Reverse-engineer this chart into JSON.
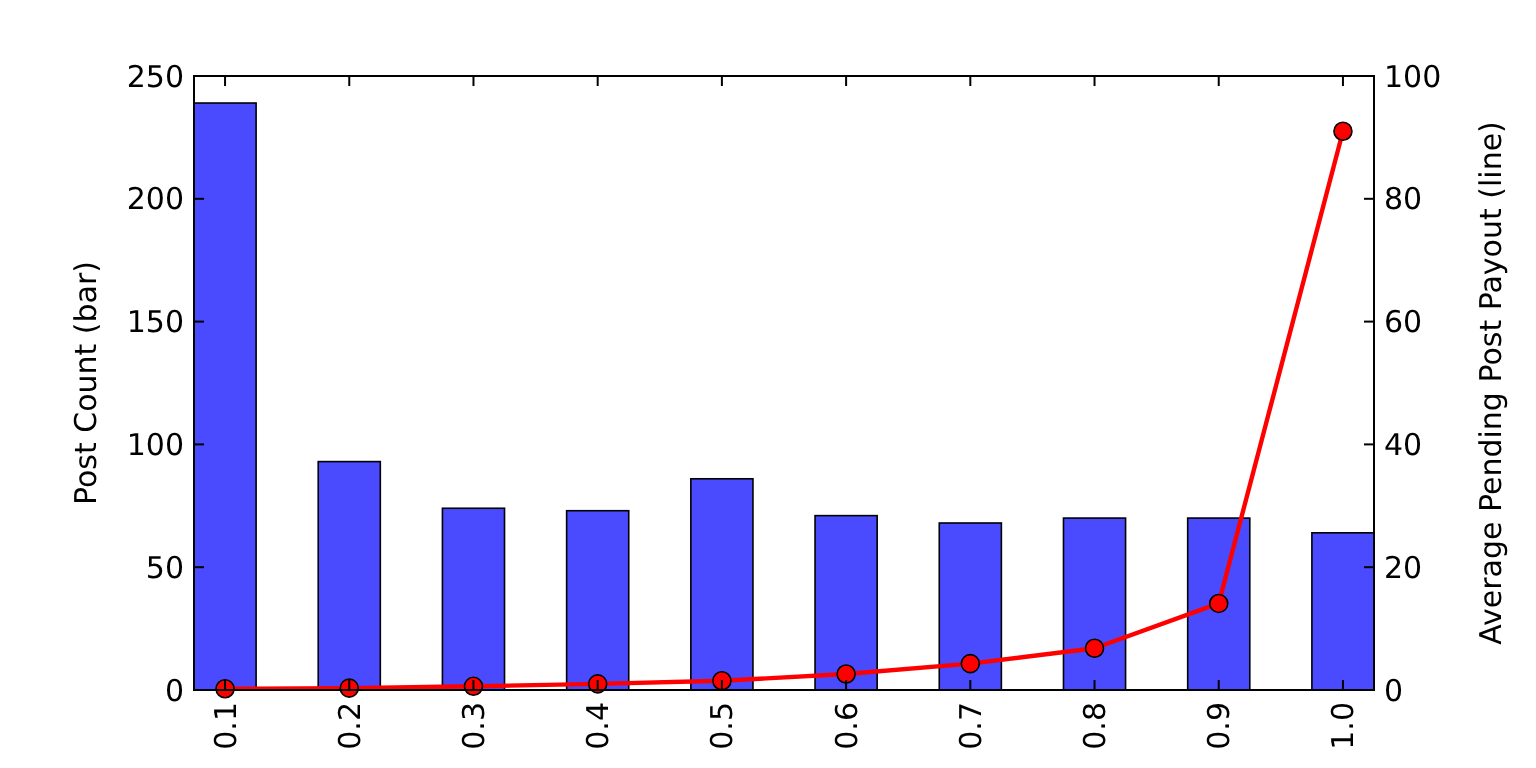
{
  "chart_data": {
    "type": "bar",
    "categories": [
      "0.1",
      "0.2",
      "0.3",
      "0.4",
      "0.5",
      "0.6",
      "0.7",
      "0.8",
      "0.9",
      "1.0"
    ],
    "ylabel": "Post Count (bar)",
    "y2label": "Average Pending Post Payout (line)",
    "ylim": [
      0,
      250
    ],
    "yticks": [
      0,
      50,
      100,
      150,
      200,
      250
    ],
    "y2lim": [
      0,
      100
    ],
    "y2ticks": [
      0,
      20,
      40,
      60,
      80,
      100
    ],
    "series": [
      {
        "color": "#4a4aff",
        "values": [
          239,
          93,
          74,
          73,
          86,
          71,
          68,
          70,
          70,
          64
        ]
      },
      {
        "type": "line",
        "axis": "y2",
        "color": "#ff0000",
        "marker": "circle",
        "values": [
          0.2,
          0.3,
          0.6,
          1,
          1.5,
          2.6,
          4.3,
          6.8,
          14.1,
          91
        ]
      }
    ]
  }
}
